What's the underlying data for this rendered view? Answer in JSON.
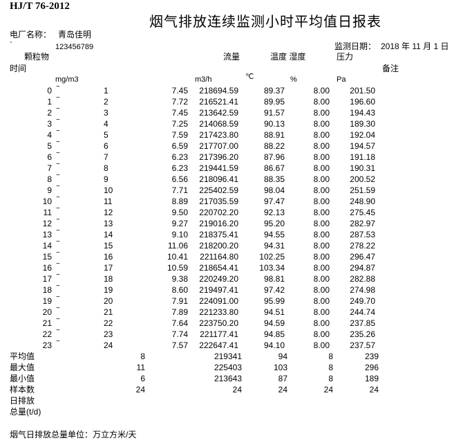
{
  "standard": "HJ/T 76-2012",
  "title": "烟气排放连续监测小时平均值日报表",
  "plant_label": "电厂名称：",
  "plant_name": "青岛佳明",
  "mark": "`",
  "code": "123456789",
  "date_label": "监测日期：",
  "date": "2018 年 11 月 1 日",
  "headers": {
    "particulate": "颗粒物",
    "flow": "流量",
    "temp_humidity": "温度 湿度",
    "pressure": "压力",
    "time": "时间",
    "remark": "备注",
    "unit_particulate": "mg/m3",
    "unit_flow": "m3/h",
    "unit_temp": "℃",
    "unit_humidity": "%",
    "unit_pressure": "Pa"
  },
  "tilde": "~",
  "rows": [
    {
      "start": "0",
      "end": "1",
      "particulate": "7.45",
      "flow": "218694.59",
      "temp": "89.37",
      "humidity": "8.00",
      "pressure": "201.50"
    },
    {
      "start": "1",
      "end": "2",
      "particulate": "7.72",
      "flow": "216521.41",
      "temp": "89.95",
      "humidity": "8.00",
      "pressure": "196.60"
    },
    {
      "start": "2",
      "end": "3",
      "particulate": "7.45",
      "flow": "213642.59",
      "temp": "91.57",
      "humidity": "8.00",
      "pressure": "194.43"
    },
    {
      "start": "3",
      "end": "4",
      "particulate": "7.25",
      "flow": "214068.59",
      "temp": "90.13",
      "humidity": "8.00",
      "pressure": "189.30"
    },
    {
      "start": "4",
      "end": "5",
      "particulate": "7.59",
      "flow": "217423.80",
      "temp": "88.91",
      "humidity": "8.00",
      "pressure": "192.04"
    },
    {
      "start": "5",
      "end": "6",
      "particulate": "6.59",
      "flow": "217707.00",
      "temp": "88.22",
      "humidity": "8.00",
      "pressure": "194.57"
    },
    {
      "start": "6",
      "end": "7",
      "particulate": "6.23",
      "flow": "217396.20",
      "temp": "87.96",
      "humidity": "8.00",
      "pressure": "191.18"
    },
    {
      "start": "7",
      "end": "8",
      "particulate": "6.23",
      "flow": "219441.59",
      "temp": "86.67",
      "humidity": "8.00",
      "pressure": "190.31"
    },
    {
      "start": "8",
      "end": "9",
      "particulate": "6.56",
      "flow": "218096.41",
      "temp": "88.35",
      "humidity": "8.00",
      "pressure": "200.52"
    },
    {
      "start": "9",
      "end": "10",
      "particulate": "7.71",
      "flow": "225402.59",
      "temp": "98.04",
      "humidity": "8.00",
      "pressure": "251.59"
    },
    {
      "start": "10",
      "end": "11",
      "particulate": "8.89",
      "flow": "217035.59",
      "temp": "97.47",
      "humidity": "8.00",
      "pressure": "248.90"
    },
    {
      "start": "11",
      "end": "12",
      "particulate": "9.50",
      "flow": "220702.20",
      "temp": "92.13",
      "humidity": "8.00",
      "pressure": "275.45"
    },
    {
      "start": "12",
      "end": "13",
      "particulate": "9.27",
      "flow": "219016.20",
      "temp": "95.20",
      "humidity": "8.00",
      "pressure": "282.97"
    },
    {
      "start": "13",
      "end": "14",
      "particulate": "9.10",
      "flow": "218375.41",
      "temp": "94.55",
      "humidity": "8.00",
      "pressure": "287.53"
    },
    {
      "start": "14",
      "end": "15",
      "particulate": "11.06",
      "flow": "218200.20",
      "temp": "94.31",
      "humidity": "8.00",
      "pressure": "278.22"
    },
    {
      "start": "15",
      "end": "16",
      "particulate": "10.41",
      "flow": "221164.80",
      "temp": "102.25",
      "humidity": "8.00",
      "pressure": "296.47"
    },
    {
      "start": "16",
      "end": "17",
      "particulate": "10.59",
      "flow": "218654.41",
      "temp": "103.34",
      "humidity": "8.00",
      "pressure": "294.87"
    },
    {
      "start": "17",
      "end": "18",
      "particulate": "9.38",
      "flow": "220249.20",
      "temp": "98.81",
      "humidity": "8.00",
      "pressure": "282.88"
    },
    {
      "start": "18",
      "end": "19",
      "particulate": "8.60",
      "flow": "219497.41",
      "temp": "97.42",
      "humidity": "8.00",
      "pressure": "274.98"
    },
    {
      "start": "19",
      "end": "20",
      "particulate": "7.91",
      "flow": "224091.00",
      "temp": "95.99",
      "humidity": "8.00",
      "pressure": "249.70"
    },
    {
      "start": "20",
      "end": "21",
      "particulate": "7.89",
      "flow": "221233.80",
      "temp": "94.51",
      "humidity": "8.00",
      "pressure": "244.74"
    },
    {
      "start": "21",
      "end": "22",
      "particulate": "7.64",
      "flow": "223750.20",
      "temp": "94.59",
      "humidity": "8.00",
      "pressure": "237.85"
    },
    {
      "start": "22",
      "end": "23",
      "particulate": "7.74",
      "flow": "221177.41",
      "temp": "94.85",
      "humidity": "8.00",
      "pressure": "235.26"
    },
    {
      "start": "23",
      "end": "24",
      "particulate": "7.57",
      "flow": "222647.41",
      "temp": "94.10",
      "humidity": "8.00",
      "pressure": "237.57"
    }
  ],
  "summary": [
    {
      "label": "平均值",
      "particulate": "8",
      "flow": "219341",
      "temp": "94",
      "humidity": "8",
      "pressure": "239"
    },
    {
      "label": "最大值",
      "particulate": "11",
      "flow": "225403",
      "temp": "103",
      "humidity": "8",
      "pressure": "296"
    },
    {
      "label": "最小值",
      "particulate": "6",
      "flow": "213643",
      "temp": "87",
      "humidity": "8",
      "pressure": "189"
    },
    {
      "label": "样本数",
      "particulate": "24",
      "flow": "24",
      "temp": "24",
      "humidity": "24",
      "pressure": "24"
    },
    {
      "label": "日排放",
      "particulate": "",
      "flow": "",
      "temp": "",
      "humidity": "",
      "pressure": ""
    },
    {
      "label": "总量(t/d)",
      "particulate": "",
      "flow": "",
      "temp": "",
      "humidity": "",
      "pressure": ""
    }
  ],
  "footer": "烟气日排放总量单位：万立方米/天"
}
